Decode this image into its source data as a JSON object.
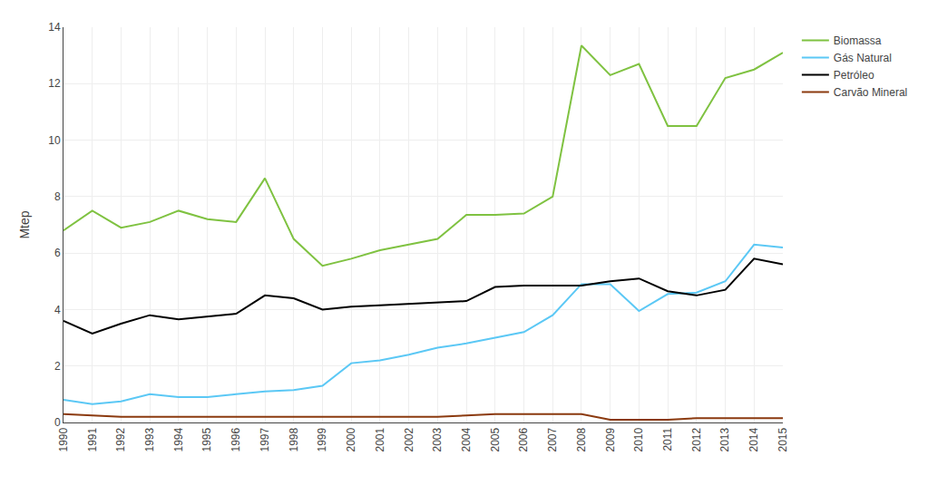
{
  "chart_data": {
    "type": "line",
    "ylabel": "Mtep",
    "x": [
      1990,
      1991,
      1992,
      1993,
      1994,
      1995,
      1996,
      1997,
      1998,
      1999,
      2000,
      2001,
      2002,
      2003,
      2004,
      2005,
      2006,
      2007,
      2008,
      2009,
      2010,
      2011,
      2012,
      2013,
      2014,
      2015
    ],
    "series": [
      {
        "name": "Biomassa",
        "color": "#7FC241",
        "values": [
          6.8,
          7.5,
          6.9,
          7.1,
          7.5,
          7.2,
          7.1,
          8.65,
          6.5,
          5.55,
          5.8,
          6.1,
          6.3,
          6.5,
          7.35,
          7.35,
          7.4,
          8.0,
          13.35,
          12.3,
          12.7,
          10.5,
          10.5,
          12.2,
          12.5,
          13.1
        ]
      },
      {
        "name": "Gás Natural",
        "color": "#5BC8F5",
        "values": [
          0.8,
          0.65,
          0.75,
          1.0,
          0.9,
          0.9,
          1.0,
          1.1,
          1.15,
          1.3,
          2.1,
          2.2,
          2.4,
          2.65,
          2.8,
          3.0,
          3.2,
          3.8,
          4.9,
          4.9,
          3.95,
          4.55,
          4.6,
          5.0,
          6.3,
          6.2
        ]
      },
      {
        "name": "Petróleo",
        "color": "#000000",
        "values": [
          3.6,
          3.15,
          3.5,
          3.8,
          3.65,
          3.75,
          3.85,
          4.5,
          4.4,
          4.0,
          4.1,
          4.15,
          4.2,
          4.25,
          4.3,
          4.8,
          4.85,
          4.85,
          4.85,
          5.0,
          5.1,
          4.65,
          4.5,
          4.7,
          5.8,
          5.6
        ]
      },
      {
        "name": "Carvão Mineral",
        "color": "#8B3A0F",
        "values": [
          0.3,
          0.25,
          0.2,
          0.2,
          0.2,
          0.2,
          0.2,
          0.2,
          0.2,
          0.2,
          0.2,
          0.2,
          0.2,
          0.2,
          0.25,
          0.3,
          0.3,
          0.3,
          0.3,
          0.1,
          0.1,
          0.1,
          0.15,
          0.15,
          0.15,
          0.15
        ]
      }
    ],
    "xlim": [
      1990,
      2015
    ],
    "xticks": [
      1990,
      1991,
      1992,
      1993,
      1994,
      1995,
      1996,
      1997,
      1998,
      1999,
      2000,
      2001,
      2002,
      2003,
      2004,
      2005,
      2006,
      2007,
      2008,
      2009,
      2010,
      2011,
      2012,
      2013,
      2014,
      2015
    ],
    "ylim": [
      0,
      14
    ],
    "yticks": [
      0,
      2,
      4,
      6,
      8,
      10,
      12,
      14
    ],
    "grid": true,
    "legend": "right"
  }
}
